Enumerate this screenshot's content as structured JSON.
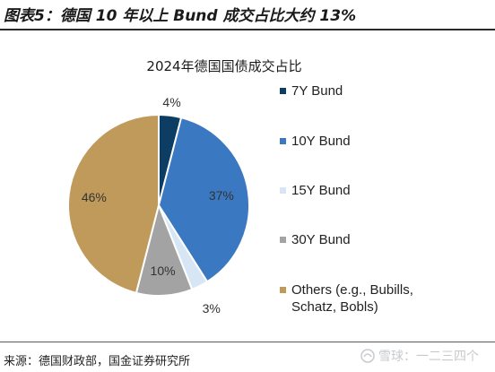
{
  "figure": {
    "title": "图表5：德国 10 年以上 Bund 成交占比大约 13%",
    "source": "来源：德国财政部，国金证券研究所",
    "watermark": "雪球：一二三四个"
  },
  "chart_data": {
    "type": "pie",
    "title": "2024年德国国债成交占比",
    "slices": [
      {
        "name": "7Y Bund",
        "value": 4,
        "label": "4%",
        "color": "#0e3d63"
      },
      {
        "name": "10Y Bund",
        "value": 37,
        "label": "37%",
        "color": "#3a78c1"
      },
      {
        "name": "15Y Bund",
        "value": 3,
        "label": "3%",
        "color": "#d6e6f4"
      },
      {
        "name": "30Y Bund",
        "value": 10,
        "label": "10%",
        "color": "#a3a3a3"
      },
      {
        "name": "Others (e.g., Bubills, Schatz, Bobls)",
        "value": 46,
        "label": "46%",
        "color": "#c09a5a"
      }
    ],
    "legend": {
      "position": "right",
      "items": [
        "7Y Bund",
        "10Y Bund",
        "15Y Bund",
        "30Y Bund",
        "Others (e.g., Bubills,\nSchatz, Bobls)"
      ]
    }
  }
}
